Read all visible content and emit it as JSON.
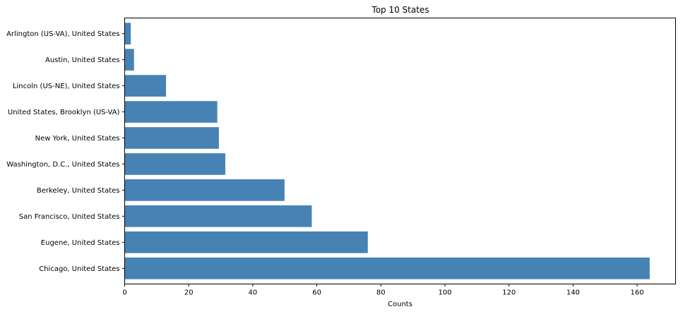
{
  "chart_data": {
    "type": "bar",
    "orientation": "horizontal",
    "title": "Top 10 States",
    "xlabel": "Counts",
    "ylabel": "",
    "categories": [
      "Arlington (US-VA), United States",
      "Austin, United States",
      "Lincoln (US-NE), United States",
      "United States, Brooklyn (US-VA)",
      "New York, United States",
      "Washington, D.C., United States",
      "Berkeley, United States",
      "San Francisco, United States",
      "Eugene, United States",
      "Chicago, United States"
    ],
    "values": [
      2,
      3,
      13,
      29,
      29.5,
      31.5,
      50,
      58.5,
      76,
      164
    ],
    "xlim": [
      0,
      172
    ],
    "xticks": [
      0,
      20,
      40,
      60,
      80,
      100,
      120,
      140,
      160
    ],
    "grid": false,
    "bar_color": "#4682b4"
  }
}
